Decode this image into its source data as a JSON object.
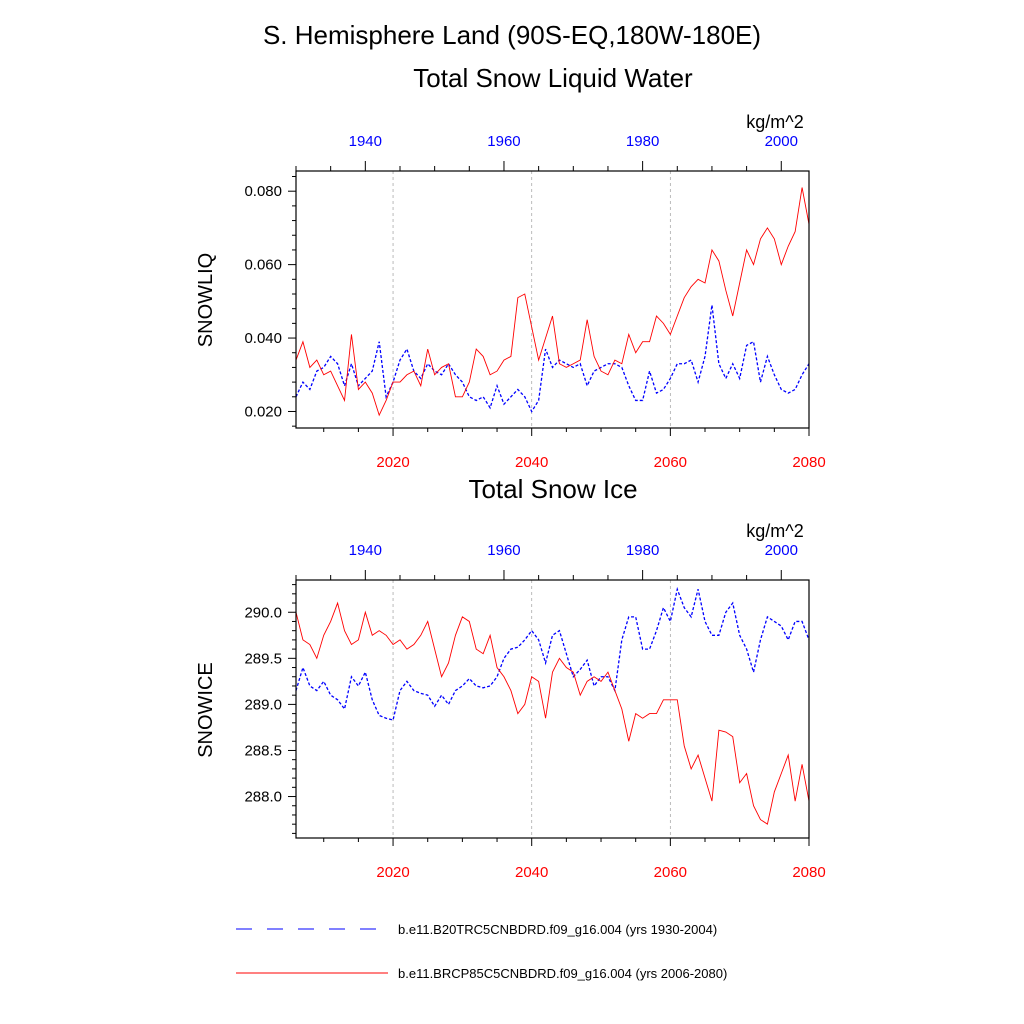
{
  "figure_title": "S. Hemisphere Land (90S-EQ,180W-180E)",
  "colors": {
    "ctrl": "#0000ff",
    "future": "#ff0000",
    "frame": "#000000",
    "grid": "#aaaaaa"
  },
  "legend": [
    {
      "label": "b.e11.B20TRC5CNBDRD.f09_g16.004 (yrs 1930-2004)",
      "style": "dashed",
      "color": "#0000ff"
    },
    {
      "label": "b.e11.BRCP85C5CNBDRD.f09_g16.004 (yrs 2006-2080)",
      "style": "solid",
      "color": "#ff0000"
    }
  ],
  "chart_data": [
    {
      "type": "line",
      "title": "Total Snow Liquid Water",
      "units": "kg/m^2",
      "ylabel": "SNOWLIQ",
      "ylim": [
        0.0155,
        0.0855
      ],
      "xlim_bottom": [
        2006,
        2080
      ],
      "xlim_top": [
        1930,
        2004
      ],
      "x_ticks_bottom": [
        "2020",
        "2040",
        "2060",
        "2080"
      ],
      "x_ticks_top": [
        "1940",
        "1960",
        "1980",
        "2000"
      ],
      "y_ticks": [
        "0.020",
        "0.040",
        "0.060",
        "0.080"
      ],
      "grid_lines_x": [
        2020,
        2040,
        2060
      ],
      "series": [
        {
          "name": "b.e11.B20TRC5CNBDRD.f09_g16.004 (yrs 1930-2004)",
          "style": "dashed",
          "x": [
            1930,
            1931,
            1932,
            1933,
            1934,
            1935,
            1936,
            1937,
            1938,
            1939,
            1940,
            1941,
            1942,
            1943,
            1944,
            1945,
            1946,
            1947,
            1948,
            1949,
            1950,
            1951,
            1952,
            1953,
            1954,
            1955,
            1956,
            1957,
            1958,
            1959,
            1960,
            1961,
            1962,
            1963,
            1964,
            1965,
            1966,
            1967,
            1968,
            1969,
            1970,
            1971,
            1972,
            1973,
            1974,
            1975,
            1976,
            1977,
            1978,
            1979,
            1980,
            1981,
            1982,
            1983,
            1984,
            1985,
            1986,
            1987,
            1988,
            1989,
            1990,
            1991,
            1992,
            1993,
            1994,
            1995,
            1996,
            1997,
            1998,
            1999,
            2000,
            2001,
            2002,
            2003,
            2004
          ],
          "values": [
            0.024,
            0.028,
            0.026,
            0.031,
            0.032,
            0.035,
            0.033,
            0.027,
            0.033,
            0.027,
            0.029,
            0.031,
            0.039,
            0.024,
            0.028,
            0.034,
            0.037,
            0.031,
            0.029,
            0.033,
            0.031,
            0.03,
            0.033,
            0.03,
            0.028,
            0.024,
            0.023,
            0.024,
            0.021,
            0.027,
            0.022,
            0.024,
            0.026,
            0.024,
            0.02,
            0.023,
            0.037,
            0.032,
            0.034,
            0.033,
            0.032,
            0.033,
            0.027,
            0.031,
            0.032,
            0.033,
            0.033,
            0.032,
            0.027,
            0.023,
            0.023,
            0.031,
            0.025,
            0.026,
            0.029,
            0.033,
            0.033,
            0.034,
            0.028,
            0.035,
            0.049,
            0.033,
            0.029,
            0.033,
            0.029,
            0.038,
            0.039,
            0.028,
            0.035,
            0.03,
            0.026,
            0.025,
            0.026,
            0.03,
            0.033
          ]
        },
        {
          "name": "b.e11.BRCP85C5CNBDRD.f09_g16.004 (yrs 2006-2080)",
          "style": "solid",
          "x": [
            2006,
            2007,
            2008,
            2009,
            2010,
            2011,
            2012,
            2013,
            2014,
            2015,
            2016,
            2017,
            2018,
            2019,
            2020,
            2021,
            2022,
            2023,
            2024,
            2025,
            2026,
            2027,
            2028,
            2029,
            2030,
            2031,
            2032,
            2033,
            2034,
            2035,
            2036,
            2037,
            2038,
            2039,
            2040,
            2041,
            2042,
            2043,
            2044,
            2045,
            2046,
            2047,
            2048,
            2049,
            2050,
            2051,
            2052,
            2053,
            2054,
            2055,
            2056,
            2057,
            2058,
            2059,
            2060,
            2061,
            2062,
            2063,
            2064,
            2065,
            2066,
            2067,
            2068,
            2069,
            2070,
            2071,
            2072,
            2073,
            2074,
            2075,
            2076,
            2077,
            2078,
            2079,
            2080
          ],
          "values": [
            0.034,
            0.039,
            0.032,
            0.034,
            0.03,
            0.031,
            0.027,
            0.023,
            0.041,
            0.026,
            0.028,
            0.025,
            0.019,
            0.023,
            0.028,
            0.028,
            0.03,
            0.031,
            0.027,
            0.037,
            0.03,
            0.032,
            0.033,
            0.024,
            0.024,
            0.028,
            0.037,
            0.035,
            0.03,
            0.031,
            0.034,
            0.035,
            0.051,
            0.052,
            0.043,
            0.034,
            0.04,
            0.046,
            0.033,
            0.032,
            0.033,
            0.034,
            0.045,
            0.035,
            0.031,
            0.03,
            0.034,
            0.033,
            0.041,
            0.036,
            0.039,
            0.039,
            0.046,
            0.044,
            0.041,
            0.046,
            0.051,
            0.054,
            0.056,
            0.055,
            0.064,
            0.061,
            0.053,
            0.046,
            0.055,
            0.064,
            0.06,
            0.067,
            0.07,
            0.067,
            0.06,
            0.065,
            0.069,
            0.081,
            0.071
          ]
        }
      ]
    },
    {
      "type": "line",
      "title": "Total Snow Ice",
      "units": "kg/m^2",
      "ylabel": "SNOWICE",
      "ylim": [
        287.55,
        290.35
      ],
      "xlim_bottom": [
        2006,
        2080
      ],
      "xlim_top": [
        1930,
        2004
      ],
      "x_ticks_bottom": [
        "2020",
        "2040",
        "2060",
        "2080"
      ],
      "x_ticks_top": [
        "1940",
        "1960",
        "1980",
        "2000"
      ],
      "y_ticks": [
        "288.0",
        "288.5",
        "289.0",
        "289.5",
        "290.0"
      ],
      "grid_lines_x": [
        2020,
        2040,
        2060
      ],
      "series": [
        {
          "name": "b.e11.B20TRC5CNBDRD.f09_g16.004 (yrs 1930-2004)",
          "style": "dashed",
          "x": [
            1930,
            1931,
            1932,
            1933,
            1934,
            1935,
            1936,
            1937,
            1938,
            1939,
            1940,
            1941,
            1942,
            1943,
            1944,
            1945,
            1946,
            1947,
            1948,
            1949,
            1950,
            1951,
            1952,
            1953,
            1954,
            1955,
            1956,
            1957,
            1958,
            1959,
            1960,
            1961,
            1962,
            1963,
            1964,
            1965,
            1966,
            1967,
            1968,
            1969,
            1970,
            1971,
            1972,
            1973,
            1974,
            1975,
            1976,
            1977,
            1978,
            1979,
            1980,
            1981,
            1982,
            1983,
            1984,
            1985,
            1986,
            1987,
            1988,
            1989,
            1990,
            1991,
            1992,
            1993,
            1994,
            1995,
            1996,
            1997,
            1998,
            1999,
            2000,
            2001,
            2002,
            2003,
            2004
          ],
          "values": [
            289.15,
            289.4,
            289.2,
            289.15,
            289.25,
            289.1,
            289.05,
            288.95,
            289.3,
            289.2,
            289.35,
            289.05,
            288.88,
            288.85,
            288.83,
            289.15,
            289.25,
            289.15,
            289.12,
            289.1,
            288.98,
            289.1,
            289.0,
            289.15,
            289.2,
            289.28,
            289.2,
            289.18,
            289.2,
            289.3,
            289.5,
            289.6,
            289.62,
            289.7,
            289.8,
            289.7,
            289.45,
            289.75,
            289.8,
            289.55,
            289.3,
            289.38,
            289.48,
            289.2,
            289.3,
            289.3,
            289.15,
            289.7,
            289.95,
            289.95,
            289.6,
            289.6,
            289.8,
            290.05,
            289.9,
            290.25,
            290.05,
            289.95,
            290.25,
            289.9,
            289.75,
            289.75,
            290.0,
            290.1,
            289.75,
            289.6,
            289.35,
            289.7,
            289.95,
            289.9,
            289.85,
            289.7,
            289.9,
            289.9,
            289.7
          ]
        },
        {
          "name": "b.e11.BRCP85C5CNBDRD.f09_g16.004 (yrs 2006-2080)",
          "style": "solid",
          "x": [
            2006,
            2007,
            2008,
            2009,
            2010,
            2011,
            2012,
            2013,
            2014,
            2015,
            2016,
            2017,
            2018,
            2019,
            2020,
            2021,
            2022,
            2023,
            2024,
            2025,
            2026,
            2027,
            2028,
            2029,
            2030,
            2031,
            2032,
            2033,
            2034,
            2035,
            2036,
            2037,
            2038,
            2039,
            2040,
            2041,
            2042,
            2043,
            2044,
            2045,
            2046,
            2047,
            2048,
            2049,
            2050,
            2051,
            2052,
            2053,
            2054,
            2055,
            2056,
            2057,
            2058,
            2059,
            2060,
            2061,
            2062,
            2063,
            2064,
            2065,
            2066,
            2067,
            2068,
            2069,
            2070,
            2071,
            2072,
            2073,
            2074,
            2075,
            2076,
            2077,
            2078,
            2079,
            2080
          ],
          "values": [
            290.0,
            289.7,
            289.65,
            289.5,
            289.75,
            289.9,
            290.1,
            289.8,
            289.65,
            289.7,
            290.0,
            289.75,
            289.8,
            289.75,
            289.65,
            289.7,
            289.6,
            289.65,
            289.75,
            289.9,
            289.6,
            289.3,
            289.45,
            289.75,
            289.95,
            289.9,
            289.6,
            289.55,
            289.75,
            289.4,
            289.3,
            289.15,
            288.9,
            289.0,
            289.3,
            289.25,
            288.85,
            289.35,
            289.5,
            289.4,
            289.35,
            289.1,
            289.25,
            289.3,
            289.25,
            289.35,
            289.15,
            288.95,
            288.6,
            288.9,
            288.85,
            288.9,
            288.9,
            289.05,
            289.05,
            289.05,
            288.55,
            288.3,
            288.45,
            288.2,
            287.95,
            288.72,
            288.7,
            288.65,
            288.15,
            288.25,
            287.9,
            287.75,
            287.7,
            288.05,
            288.25,
            288.45,
            287.95,
            288.35,
            287.95
          ]
        }
      ]
    }
  ]
}
